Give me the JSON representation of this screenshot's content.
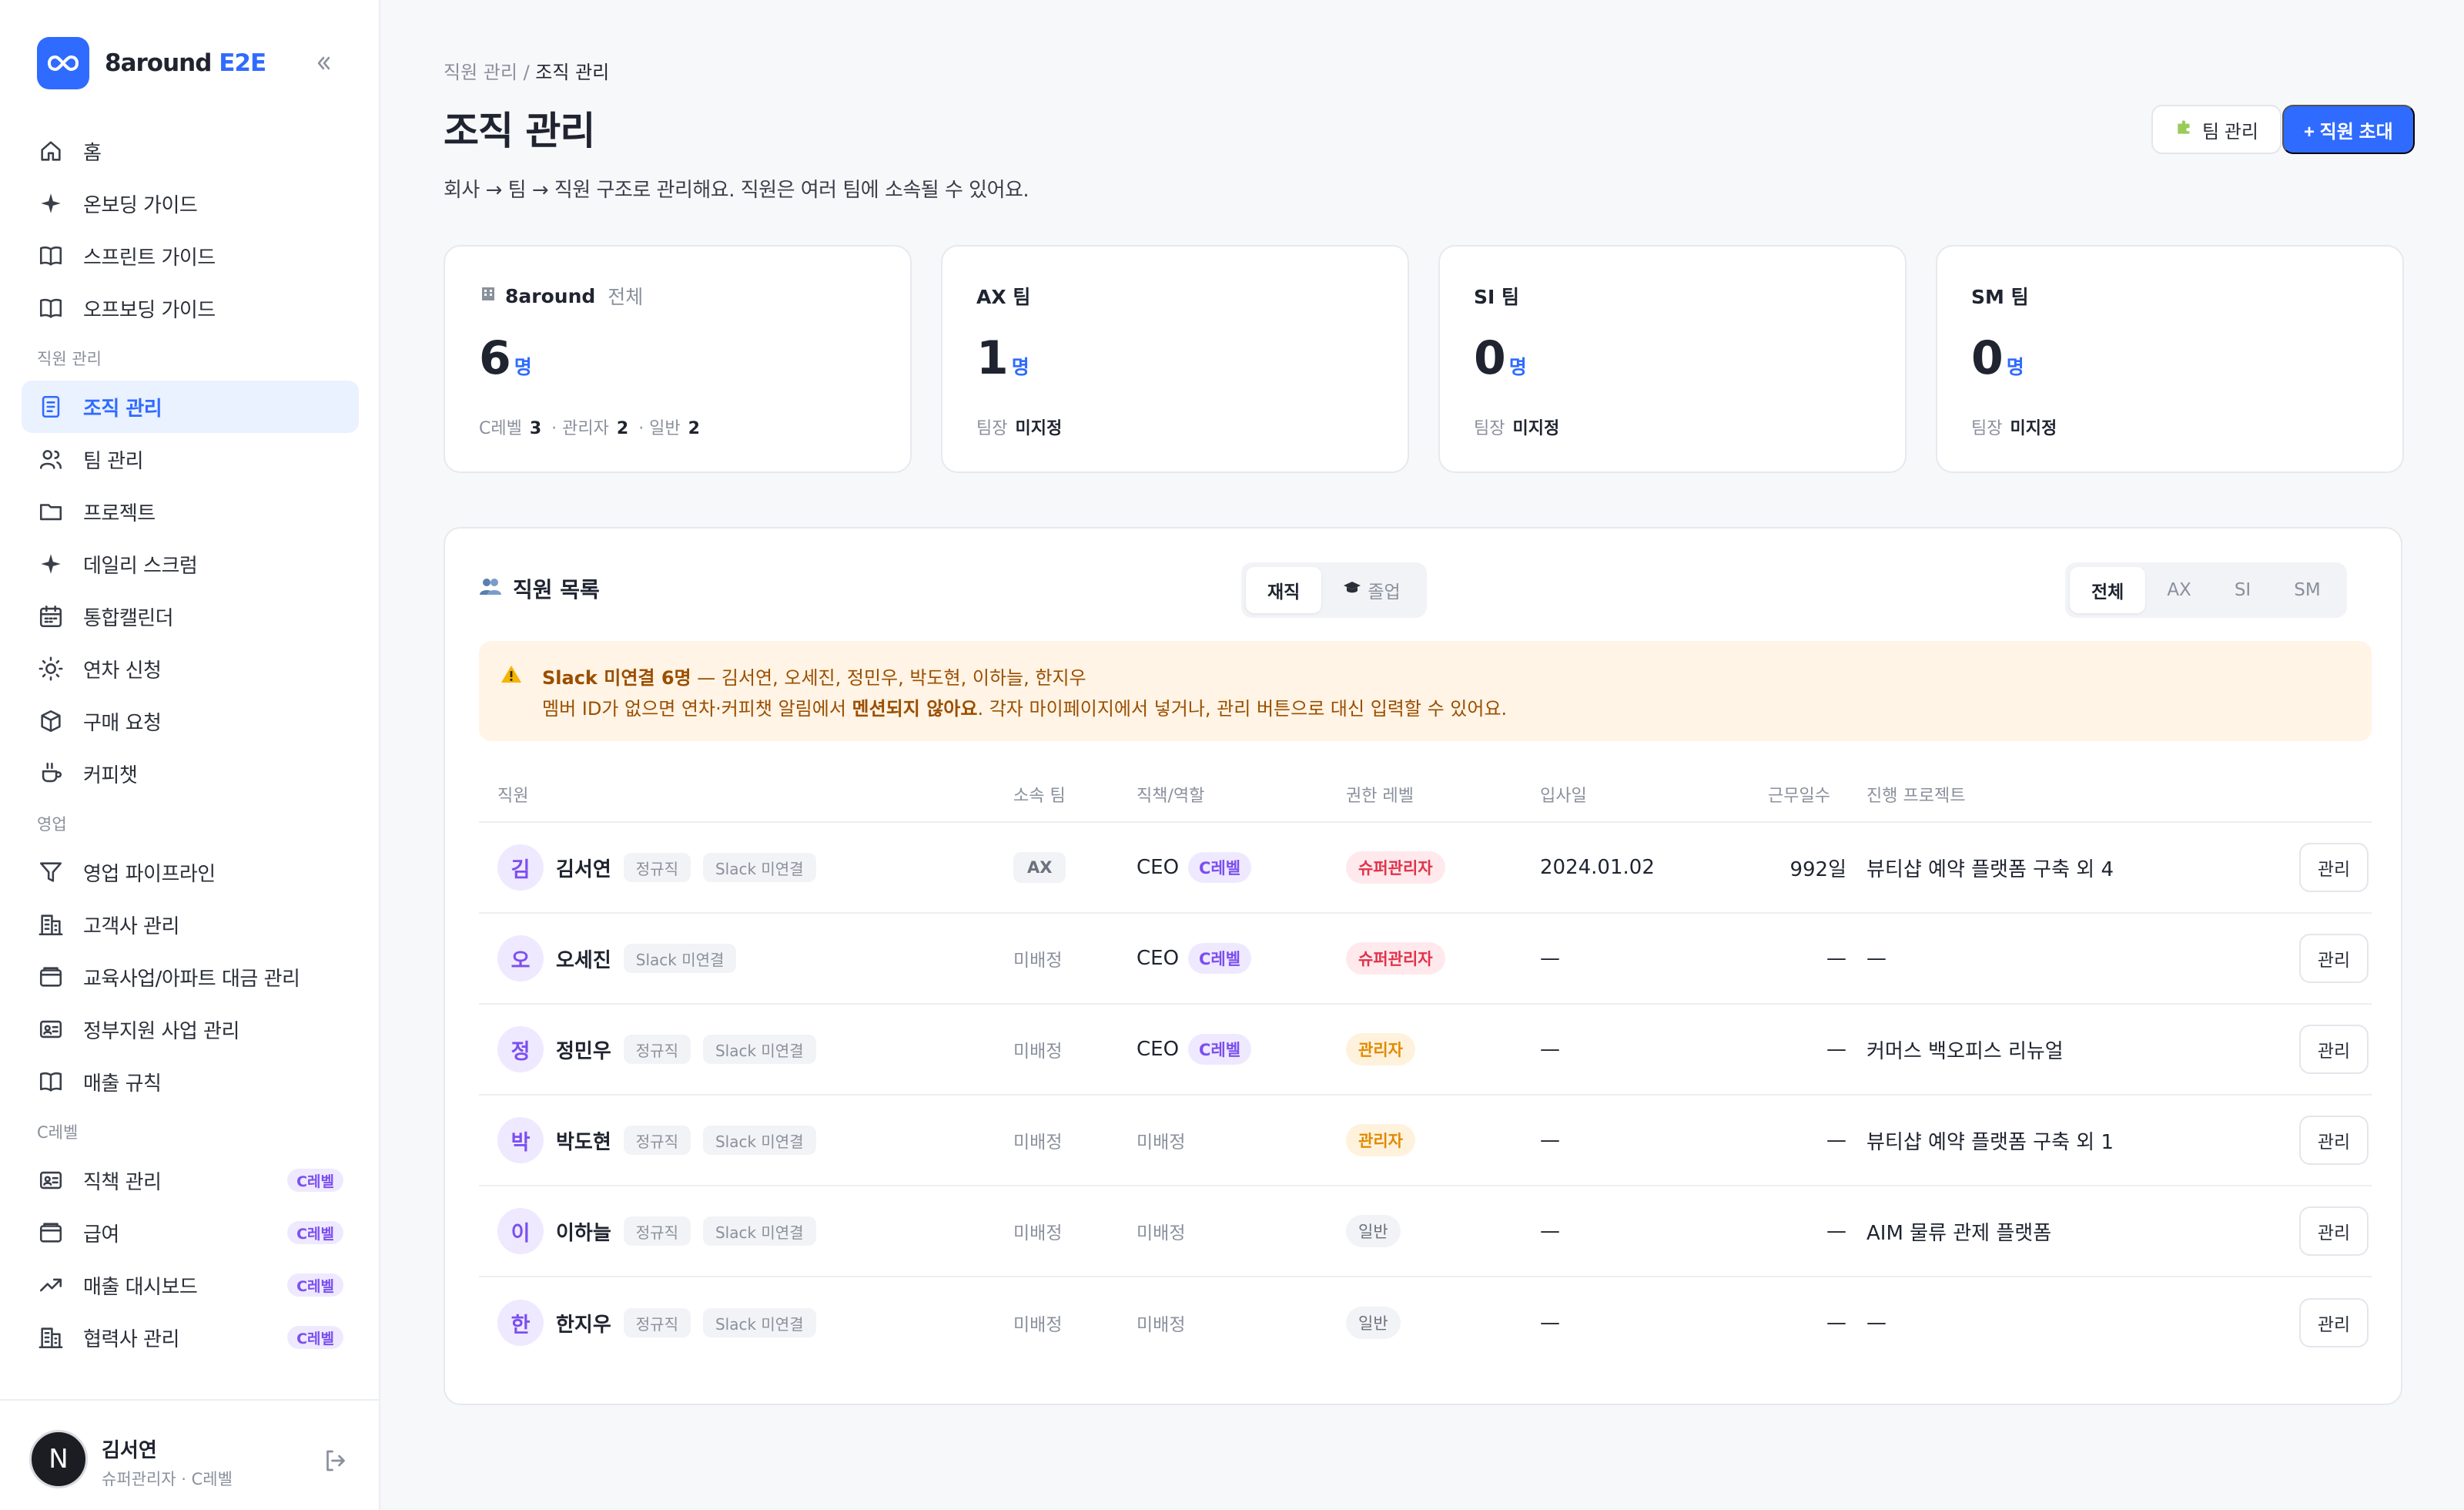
{
  "brand": {
    "name_main": "8around",
    "name_accent": "E2E"
  },
  "nav": {
    "top": [
      {
        "id": "home",
        "label": "홈",
        "icon": "home-icon"
      },
      {
        "id": "onboarding",
        "label": "온보딩 가이드",
        "icon": "sparkle-icon"
      },
      {
        "id": "sprint",
        "label": "스프린트 가이드",
        "icon": "book-icon"
      },
      {
        "id": "offboarding",
        "label": "오프보딩 가이드",
        "icon": "book-icon"
      }
    ],
    "section_hr": "직원 관리",
    "hr": [
      {
        "id": "org",
        "label": "조직 관리",
        "icon": "list-icon",
        "active": true
      },
      {
        "id": "team",
        "label": "팀 관리",
        "icon": "users-icon"
      },
      {
        "id": "project",
        "label": "프로젝트",
        "icon": "folder-icon"
      },
      {
        "id": "scrum",
        "label": "데일리 스크럼",
        "icon": "sparkle-icon"
      },
      {
        "id": "calendar",
        "label": "통합캘린더",
        "icon": "calendar-icon"
      },
      {
        "id": "leave",
        "label": "연차 신청",
        "icon": "sun-icon"
      },
      {
        "id": "purchase",
        "label": "구매 요청",
        "icon": "box-icon"
      },
      {
        "id": "coffee",
        "label": "커피챗",
        "icon": "coffee-icon"
      }
    ],
    "section_sales": "영업",
    "sales": [
      {
        "id": "pipeline",
        "label": "영업 파이프라인",
        "icon": "filter-icon"
      },
      {
        "id": "clients",
        "label": "고객사 관리",
        "icon": "building-icon"
      },
      {
        "id": "edu",
        "label": "교육사업/아파트 대금 관리",
        "icon": "wallet-icon"
      },
      {
        "id": "gov",
        "label": "정부지원 사업 관리",
        "icon": "id-card-icon"
      },
      {
        "id": "rules",
        "label": "매출 규칙",
        "icon": "book-icon"
      }
    ],
    "section_c": "C레벨",
    "clevel": [
      {
        "id": "duties",
        "label": "직책 관리",
        "icon": "id-card-icon",
        "badge": "C레벨"
      },
      {
        "id": "salary",
        "label": "급여",
        "icon": "wallet-icon",
        "badge": "C레벨"
      },
      {
        "id": "sales-dash",
        "label": "매출 대시보드",
        "icon": "trend-icon",
        "badge": "C레벨"
      },
      {
        "id": "partners",
        "label": "협력사 관리",
        "icon": "building-icon",
        "badge": "C레벨"
      }
    ]
  },
  "user": {
    "initial": "N",
    "name": "김서연",
    "role": "슈퍼관리자 · C레벨"
  },
  "header": {
    "breadcrumb_parent": "직원 관리",
    "breadcrumb_sep": " / ",
    "breadcrumb_current": "조직 관리",
    "title": "조직 관리",
    "description": "회사 → 팀 → 직원 구조로 관리해요. 직원은 여러 팀에 소속될 수 있어요.",
    "team_button": "팀 관리",
    "invite_button": "+ 직원 초대"
  },
  "stats": [
    {
      "title": "8around",
      "sub": "전체",
      "count": "6",
      "unit": "명",
      "foot_type": "levels",
      "foot": {
        "c_label": "C레벨",
        "c_val": "3",
        "a_label": "· 관리자",
        "a_val": "2",
        "n_label": "· 일반",
        "n_val": "2"
      }
    },
    {
      "title": "AX 팀",
      "count": "1",
      "unit": "명",
      "lead_label": "팀장",
      "lead_val": "미지정"
    },
    {
      "title": "SI 팀",
      "count": "0",
      "unit": "명",
      "lead_label": "팀장",
      "lead_val": "미지정"
    },
    {
      "title": "SM 팀",
      "count": "0",
      "unit": "명",
      "lead_label": "팀장",
      "lead_val": "미지정"
    }
  ],
  "list": {
    "title": "직원 목록",
    "status_tabs": [
      {
        "label": "재직",
        "active": true
      },
      {
        "label": "졸업",
        "active": false
      }
    ],
    "team_tabs": [
      {
        "label": "전체",
        "active": true
      },
      {
        "label": "AX"
      },
      {
        "label": "SI"
      },
      {
        "label": "SM"
      }
    ],
    "alert": {
      "strong": "Slack 미연결 6명",
      "line1_rest": " — 김서연, 오세진, 정민우, 박도현, 이하늘, 한지우",
      "line2_a": "멤버 ID가 없으면 연차·커피챗 알림에서 ",
      "line2_b": "멘션되지 않아요",
      "line2_c": ". 각자 마이페이지에서 넣거나, 관리 버튼으로 대신 입력할 수 있어요."
    },
    "columns": {
      "employee": "직원",
      "team": "소속 팀",
      "role": "직책/역할",
      "perm": "권한 레벨",
      "join": "입사일",
      "days": "근무일수",
      "projects": "진행 프로젝트"
    },
    "manage_label": "관리",
    "rows": [
      {
        "initial": "김",
        "name": "김서연",
        "emp_tag": "정규직",
        "slack_tag": "Slack 미연결",
        "team": "AX",
        "team_chip": true,
        "role": "CEO",
        "clevel": "C레벨",
        "perm": "슈퍼관리자",
        "perm_type": "super",
        "join": "2024.01.02",
        "days": "992일",
        "projects": "뷰티샵 예약 플랫폼 구축 외 4"
      },
      {
        "initial": "오",
        "name": "오세진",
        "emp_tag": "",
        "slack_tag": "Slack 미연결",
        "team": "미배정",
        "team_chip": false,
        "role": "CEO",
        "clevel": "C레벨",
        "perm": "슈퍼관리자",
        "perm_type": "super",
        "join": "—",
        "days": "—",
        "projects": "—"
      },
      {
        "initial": "정",
        "name": "정민우",
        "emp_tag": "정규직",
        "slack_tag": "Slack 미연결",
        "team": "미배정",
        "team_chip": false,
        "role": "CEO",
        "clevel": "C레벨",
        "perm": "관리자",
        "perm_type": "admin",
        "join": "—",
        "days": "—",
        "projects": "커머스 백오피스 리뉴얼"
      },
      {
        "initial": "박",
        "name": "박도현",
        "emp_tag": "정규직",
        "slack_tag": "Slack 미연결",
        "team": "미배정",
        "team_chip": false,
        "role": "미배정",
        "clevel": "",
        "perm": "관리자",
        "perm_type": "admin",
        "join": "—",
        "days": "—",
        "projects": "뷰티샵 예약 플랫폼 구축 외 1"
      },
      {
        "initial": "이",
        "name": "이하늘",
        "emp_tag": "정규직",
        "slack_tag": "Slack 미연결",
        "team": "미배정",
        "team_chip": false,
        "role": "미배정",
        "clevel": "",
        "perm": "일반",
        "perm_type": "normal",
        "join": "—",
        "days": "—",
        "projects": "AIM 물류 관제 플랫폼"
      },
      {
        "initial": "한",
        "name": "한지우",
        "emp_tag": "정규직",
        "slack_tag": "Slack 미연결",
        "team": "미배정",
        "team_chip": false,
        "role": "미배정",
        "clevel": "",
        "perm": "일반",
        "perm_type": "normal",
        "join": "—",
        "days": "—",
        "projects": "—"
      }
    ]
  },
  "colors": {
    "accent": "#2f6bff",
    "clevel": "#7b4ff0",
    "super": "#e0334a",
    "admin": "#e08a00",
    "alert_bg": "#fff4e5"
  }
}
